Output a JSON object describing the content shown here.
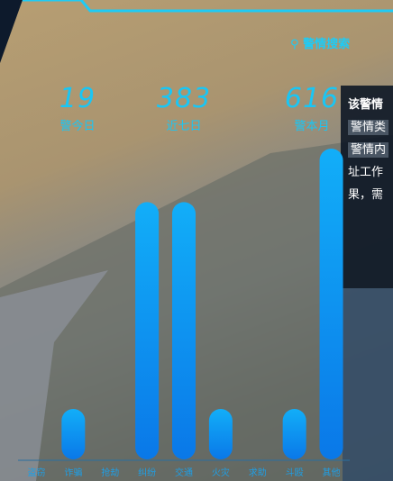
{
  "header": {
    "search": "警情搜索"
  },
  "stats": [
    {
      "value": "19",
      "label": "警今日"
    },
    {
      "value": "383",
      "label": "近七日"
    },
    {
      "value": "616",
      "label": "警本月"
    }
  ],
  "panel": {
    "lines": [
      "该警情",
      "警情类",
      "警情内",
      "址工作",
      "果，需"
    ]
  },
  "chart_data": {
    "type": "bar",
    "categories": [
      "盗窃",
      "诈骗",
      "抢劫",
      "纠纷",
      "交通",
      "火灾",
      "求助",
      "斗殴",
      "其他"
    ],
    "values": [
      0,
      100,
      0,
      510,
      510,
      100,
      0,
      100,
      616
    ],
    "color": "#0a8ff0"
  }
}
